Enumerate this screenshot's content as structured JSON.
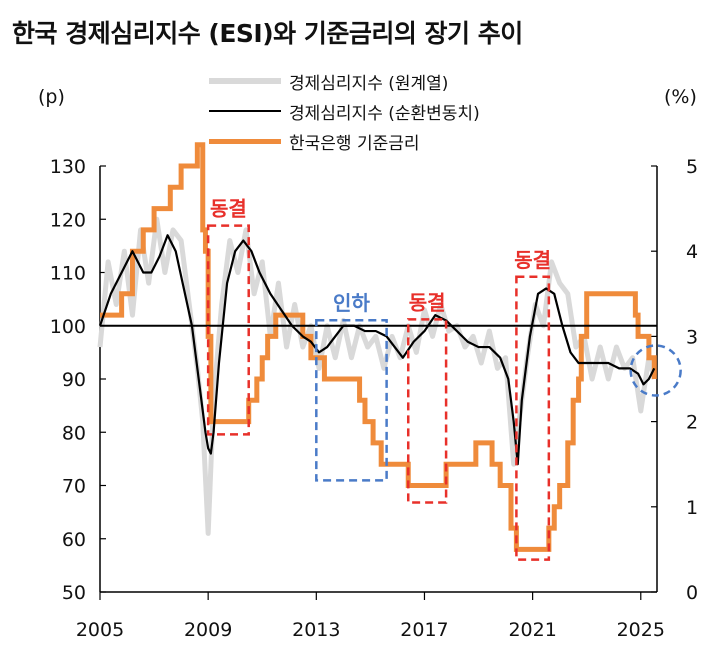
{
  "chart_data": {
    "type": "line",
    "title": "한국 경제심리지수 (ESI)와 기준금리의 장기 추이",
    "y_left_unit": "(p)",
    "y_right_unit": "(%)",
    "x_ticks": [
      "2005",
      "2009",
      "2013",
      "2017",
      "2021",
      "2025"
    ],
    "xlim": [
      2005,
      2025.6
    ],
    "y_left_ticks": [
      "130",
      "120",
      "110",
      "100",
      "90",
      "80",
      "70",
      "60",
      "50"
    ],
    "ylim_left": [
      50,
      130
    ],
    "y_right_ticks": [
      "5",
      "4",
      "3",
      "2",
      "1",
      "0"
    ],
    "ylim_right": [
      0,
      5
    ],
    "legend_position": "top-center",
    "reference_line_y": 100,
    "series": [
      {
        "name": "경제심리지수 (원계열)",
        "color": "#d9d9d9",
        "axis": "left",
        "x": [
          2005.0,
          2005.3,
          2005.6,
          2005.9,
          2006.2,
          2006.5,
          2006.8,
          2007.1,
          2007.4,
          2007.7,
          2008.0,
          2008.3,
          2008.6,
          2008.8,
          2009.0,
          2009.2,
          2009.5,
          2009.8,
          2010.1,
          2010.4,
          2010.7,
          2011.0,
          2011.3,
          2011.6,
          2011.9,
          2012.2,
          2012.5,
          2012.8,
          2013.1,
          2013.4,
          2013.7,
          2014.0,
          2014.3,
          2014.6,
          2014.9,
          2015.2,
          2015.5,
          2015.8,
          2016.1,
          2016.4,
          2016.7,
          2017.0,
          2017.3,
          2017.6,
          2017.9,
          2018.2,
          2018.5,
          2018.8,
          2019.1,
          2019.4,
          2019.7,
          2020.0,
          2020.3,
          2020.5,
          2020.8,
          2021.1,
          2021.4,
          2021.7,
          2022.0,
          2022.3,
          2022.6,
          2022.9,
          2023.2,
          2023.5,
          2023.8,
          2024.1,
          2024.4,
          2024.7,
          2025.0,
          2025.3,
          2025.5
        ],
        "values": [
          96,
          112,
          104,
          114,
          102,
          118,
          108,
          120,
          110,
          118,
          116,
          104,
          92,
          82,
          61,
          86,
          104,
          116,
          110,
          118,
          106,
          112,
          98,
          108,
          96,
          104,
          96,
          100,
          92,
          100,
          94,
          101,
          94,
          100,
          96,
          98,
          92,
          98,
          94,
          100,
          95,
          103,
          98,
          104,
          99,
          100,
          96,
          98,
          93,
          99,
          92,
          94,
          74,
          82,
          94,
          104,
          100,
          112,
          108,
          106,
          96,
          98,
          90,
          96,
          90,
          96,
          92,
          94,
          84,
          94,
          90
        ]
      },
      {
        "name": "경제심리지수 (순환변동치)",
        "color": "#000000",
        "axis": "left",
        "x": [
          2005.0,
          2005.4,
          2005.8,
          2006.2,
          2006.6,
          2006.9,
          2007.2,
          2007.5,
          2007.8,
          2008.1,
          2008.4,
          2008.7,
          2008.9,
          2009.0,
          2009.1,
          2009.2,
          2009.4,
          2009.7,
          2010.0,
          2010.3,
          2010.6,
          2010.9,
          2011.3,
          2011.7,
          2012.1,
          2012.5,
          2012.8,
          2013.1,
          2013.4,
          2013.7,
          2014.0,
          2014.4,
          2014.8,
          2015.2,
          2015.6,
          2015.9,
          2016.2,
          2016.6,
          2017.0,
          2017.4,
          2017.8,
          2018.2,
          2018.6,
          2019.0,
          2019.4,
          2019.8,
          2020.1,
          2020.3,
          2020.45,
          2020.6,
          2020.9,
          2021.2,
          2021.5,
          2021.8,
          2022.1,
          2022.4,
          2022.7,
          2023.0,
          2023.4,
          2023.8,
          2024.2,
          2024.6,
          2024.9,
          2025.1,
          2025.3,
          2025.5
        ],
        "values": [
          100,
          106,
          110,
          114,
          110,
          110,
          113,
          117,
          114,
          107,
          100,
          88,
          80,
          77,
          76,
          80,
          93,
          108,
          114,
          116,
          114,
          110,
          106,
          103,
          100,
          98,
          97,
          95,
          96,
          98,
          100,
          100,
          99,
          99,
          98,
          96,
          94,
          97,
          99,
          102,
          101,
          99,
          97,
          96,
          96,
          94,
          90,
          82,
          74,
          86,
          98,
          106,
          107,
          106,
          100,
          95,
          93,
          93,
          93,
          93,
          92,
          92,
          91,
          89,
          90,
          92
        ]
      },
      {
        "name": "한국은행 기준금리",
        "color": "#ef8b3b",
        "axis": "right",
        "step": true,
        "x": [
          2005.0,
          2005.8,
          2006.2,
          2006.6,
          2007.0,
          2007.6,
          2008.0,
          2008.6,
          2008.8,
          2008.9,
          2009.0,
          2009.1,
          2010.5,
          2010.8,
          2011.0,
          2011.2,
          2011.5,
          2012.5,
          2012.8,
          2013.0,
          2013.3,
          2014.6,
          2014.8,
          2015.1,
          2015.4,
          2015.6,
          2016.4,
          2017.8,
          2018.9,
          2019.5,
          2019.8,
          2020.2,
          2020.4,
          2021.6,
          2021.8,
          2022.0,
          2022.3,
          2022.5,
          2022.7,
          2022.8,
          2023.0,
          2024.8,
          2024.9,
          2025.3,
          2025.5
        ],
        "values": [
          3.25,
          3.5,
          4.0,
          4.25,
          4.5,
          4.75,
          5.0,
          5.25,
          4.25,
          4.0,
          3.0,
          2.0,
          2.25,
          2.5,
          2.75,
          3.0,
          3.25,
          3.0,
          2.75,
          2.75,
          2.5,
          2.25,
          2.0,
          1.75,
          1.5,
          1.5,
          1.25,
          1.5,
          1.75,
          1.5,
          1.25,
          0.75,
          0.5,
          0.75,
          1.0,
          1.25,
          1.75,
          2.25,
          2.5,
          3.0,
          3.5,
          3.25,
          3.0,
          2.75,
          2.5
        ]
      }
    ],
    "annotations": [
      {
        "label": "동결",
        "color": "#e8302a",
        "x0": 2009.0,
        "x1": 2010.5,
        "y0": 1.85,
        "y1": 4.3
      },
      {
        "label": "인하",
        "color": "#4a7bc8",
        "x0": 2013.0,
        "x1": 2015.6,
        "y0": 1.31,
        "y1": 3.19
      },
      {
        "label": "동결",
        "color": "#e8302a",
        "x0": 2016.4,
        "x1": 2017.8,
        "y0": 1.05,
        "y1": 3.2
      },
      {
        "label": "동결",
        "color": "#e8302a",
        "x0": 2020.4,
        "x1": 2021.6,
        "y0": 0.38,
        "y1": 3.7
      }
    ],
    "highlight_circle": {
      "color": "#4a7bc8",
      "x": 2025.55,
      "y": 2.6
    }
  }
}
